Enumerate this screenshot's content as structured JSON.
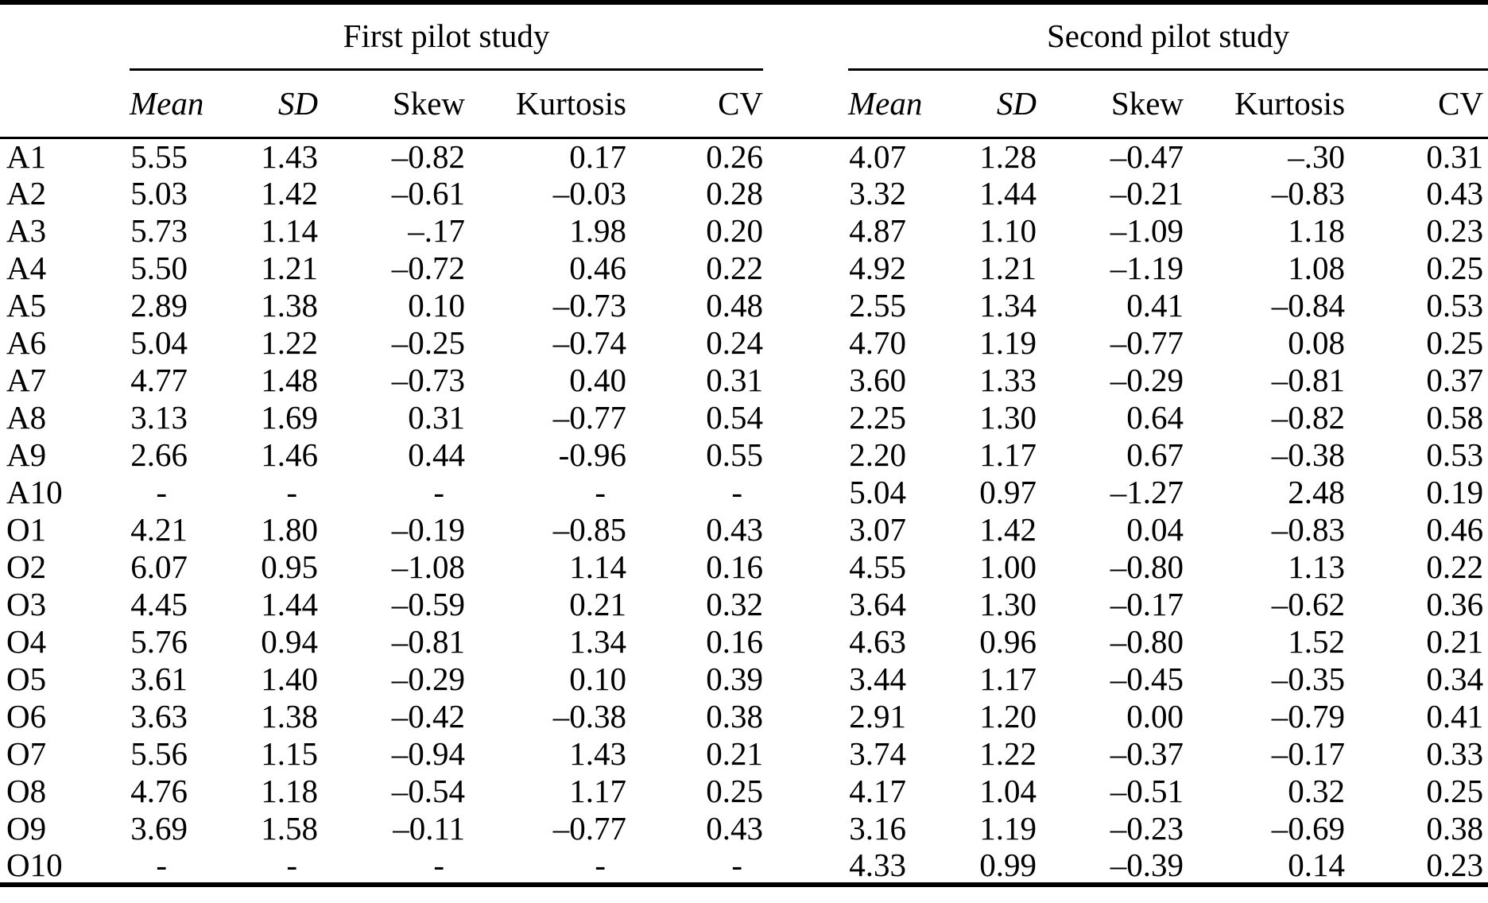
{
  "table": {
    "groups": [
      "First pilot study",
      "Second pilot study"
    ],
    "columns": [
      "Mean",
      "SD",
      "Skew",
      "Kurtosis",
      "CV"
    ],
    "missing_marker": "-",
    "text_color": "#000000",
    "rows": [
      {
        "label": "A1",
        "first": [
          "5.55",
          "1.43",
          "–0.82",
          "0.17",
          "0.26"
        ],
        "second": [
          "4.07",
          "1.28",
          "–0.47",
          "–.30",
          "0.31"
        ]
      },
      {
        "label": "A2",
        "first": [
          "5.03",
          "1.42",
          "–0.61",
          "–0.03",
          "0.28"
        ],
        "second": [
          "3.32",
          "1.44",
          "–0.21",
          "–0.83",
          "0.43"
        ]
      },
      {
        "label": "A3",
        "first": [
          "5.73",
          "1.14",
          "–.17",
          "1.98",
          "0.20"
        ],
        "second": [
          "4.87",
          "1.10",
          "–1.09",
          "1.18",
          "0.23"
        ]
      },
      {
        "label": "A4",
        "first": [
          "5.50",
          "1.21",
          "–0.72",
          "0.46",
          "0.22"
        ],
        "second": [
          "4.92",
          "1.21",
          "–1.19",
          "1.08",
          "0.25"
        ]
      },
      {
        "label": "A5",
        "first": [
          "2.89",
          "1.38",
          "0.10",
          "–0.73",
          "0.48"
        ],
        "second": [
          "2.55",
          "1.34",
          "0.41",
          "–0.84",
          "0.53"
        ]
      },
      {
        "label": "A6",
        "first": [
          "5.04",
          "1.22",
          "–0.25",
          "–0.74",
          "0.24"
        ],
        "second": [
          "4.70",
          "1.19",
          "–0.77",
          "0.08",
          "0.25"
        ]
      },
      {
        "label": "A7",
        "first": [
          "4.77",
          "1.48",
          "–0.73",
          "0.40",
          "0.31"
        ],
        "second": [
          "3.60",
          "1.33",
          "–0.29",
          "–0.81",
          "0.37"
        ]
      },
      {
        "label": "A8",
        "first": [
          "3.13",
          "1.69",
          "0.31",
          "–0.77",
          "0.54"
        ],
        "second": [
          "2.25",
          "1.30",
          "0.64",
          "–0.82",
          "0.58"
        ]
      },
      {
        "label": "A9",
        "first": [
          "2.66",
          "1.46",
          "0.44",
          "-0.96",
          "0.55"
        ],
        "second": [
          "2.20",
          "1.17",
          "0.67",
          "–0.38",
          "0.53"
        ]
      },
      {
        "label": "A10",
        "first": [
          "-",
          "-",
          "-",
          "-",
          "-"
        ],
        "second": [
          "5.04",
          "0.97",
          "–1.27",
          "2.48",
          "0.19"
        ]
      },
      {
        "label": "O1",
        "first": [
          "4.21",
          "1.80",
          "–0.19",
          "–0.85",
          "0.43"
        ],
        "second": [
          "3.07",
          "1.42",
          "0.04",
          "–0.83",
          "0.46"
        ]
      },
      {
        "label": "O2",
        "first": [
          "6.07",
          "0.95",
          "–1.08",
          "1.14",
          "0.16"
        ],
        "second": [
          "4.55",
          "1.00",
          "–0.80",
          "1.13",
          "0.22"
        ]
      },
      {
        "label": "O3",
        "first": [
          "4.45",
          "1.44",
          "–0.59",
          "0.21",
          "0.32"
        ],
        "second": [
          "3.64",
          "1.30",
          "–0.17",
          "–0.62",
          "0.36"
        ]
      },
      {
        "label": "O4",
        "first": [
          "5.76",
          "0.94",
          "–0.81",
          "1.34",
          "0.16"
        ],
        "second": [
          "4.63",
          "0.96",
          "–0.80",
          "1.52",
          "0.21"
        ]
      },
      {
        "label": "O5",
        "first": [
          "3.61",
          "1.40",
          "–0.29",
          "0.10",
          "0.39"
        ],
        "second": [
          "3.44",
          "1.17",
          "–0.45",
          "–0.35",
          "0.34"
        ]
      },
      {
        "label": "O6",
        "first": [
          "3.63",
          "1.38",
          "–0.42",
          "–0.38",
          "0.38"
        ],
        "second": [
          "2.91",
          "1.20",
          "0.00",
          "–0.79",
          "0.41"
        ]
      },
      {
        "label": "O7",
        "first": [
          "5.56",
          "1.15",
          "–0.94",
          "1.43",
          "0.21"
        ],
        "second": [
          "3.74",
          "1.22",
          "–0.37",
          "–0.17",
          "0.33"
        ]
      },
      {
        "label": "O8",
        "first": [
          "4.76",
          "1.18",
          "–0.54",
          "1.17",
          "0.25"
        ],
        "second": [
          "4.17",
          "1.04",
          "–0.51",
          "0.32",
          "0.25"
        ]
      },
      {
        "label": "O9",
        "first": [
          "3.69",
          "1.58",
          "–0.11",
          "–0.77",
          "0.43"
        ],
        "second": [
          "3.16",
          "1.19",
          "–0.23",
          "–0.69",
          "0.38"
        ]
      },
      {
        "label": "O10",
        "first": [
          "-",
          "-",
          "-",
          "-",
          "-"
        ],
        "second": [
          "4.33",
          "0.99",
          "–0.39",
          "0.14",
          "0.23"
        ]
      }
    ]
  }
}
